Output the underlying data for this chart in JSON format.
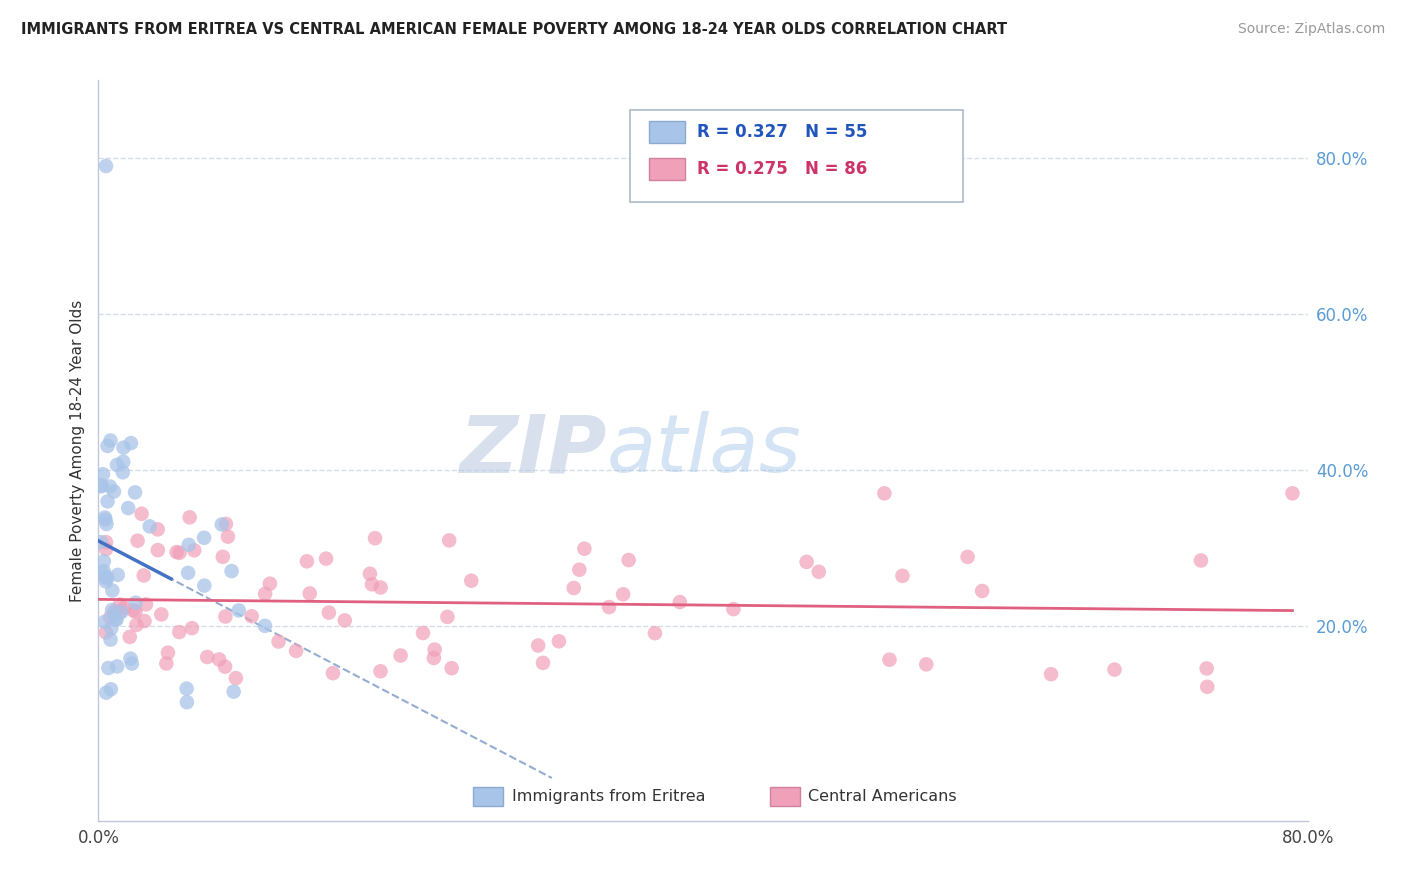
{
  "title": "IMMIGRANTS FROM ERITREA VS CENTRAL AMERICAN FEMALE POVERTY AMONG 18-24 YEAR OLDS CORRELATION CHART",
  "source": "Source: ZipAtlas.com",
  "ylabel": "Female Poverty Among 18-24 Year Olds",
  "xlim": [
    0,
    0.8
  ],
  "ylim": [
    -0.05,
    0.9
  ],
  "right_ytick_labels": [
    "20.0%",
    "40.0%",
    "60.0%",
    "80.0%"
  ],
  "right_ytick_positions": [
    0.2,
    0.4,
    0.6,
    0.8
  ],
  "legend_eritrea_R": "0.327",
  "legend_eritrea_N": "55",
  "legend_central_R": "0.275",
  "legend_central_N": "86",
  "color_eritrea": "#a8c4e8",
  "color_eritrea_line": "#4472c4",
  "color_eritrea_dash": "#7090c0",
  "color_central": "#f0a0b8",
  "color_central_line": "#e06080",
  "watermark_color": "#ccd8ee",
  "grid_color": "#d0d8e8",
  "spine_color": "#c0c8d8"
}
